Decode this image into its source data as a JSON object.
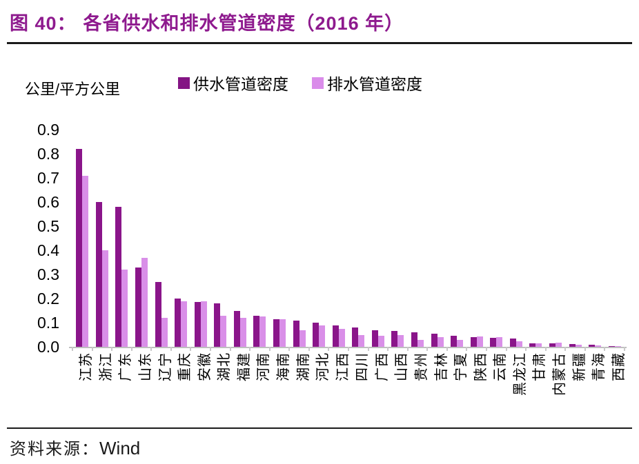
{
  "header": {
    "title_prefix": "图 40：",
    "title_text": "各省供水和排水管道密度（2016 年）",
    "title_color": "#8E1A8E"
  },
  "unit_label": "公里/平方公里",
  "legend": [
    {
      "label": "供水管道密度",
      "color": "#841484"
    },
    {
      "label": "排水管道密度",
      "color": "#DA8CEA"
    }
  ],
  "source": {
    "label_zh": "资料来源：",
    "label_en": "Wind"
  },
  "colors": {
    "title": "#8E1A8E",
    "supply_bar": "#8A158A",
    "drainage_bar": "#D98FE8",
    "axis_line": "#BFBFBF",
    "text": "#000000",
    "rule": "#1A1A1A"
  },
  "chart_data": {
    "type": "bar",
    "title": "各省供水和排水管道密度（2016 年）",
    "xlabel": "",
    "ylabel": "公里/平方公里",
    "ylim": [
      0,
      0.9
    ],
    "yticks": [
      "0.0",
      "0.1",
      "0.2",
      "0.3",
      "0.4",
      "0.5",
      "0.6",
      "0.7",
      "0.8",
      "0.9"
    ],
    "grid": false,
    "legend_position": "top",
    "categories": [
      "江苏",
      "浙江",
      "广东",
      "山东",
      "辽宁",
      "重庆",
      "安徽",
      "湖北",
      "福建",
      "河南",
      "海南",
      "湖南",
      "河北",
      "江西",
      "四川",
      "广西",
      "山西",
      "贵州",
      "吉林",
      "宁夏",
      "陕西",
      "云南",
      "黑龙江",
      "甘肃",
      "内蒙古",
      "新疆",
      "青海",
      "西藏"
    ],
    "series": [
      {
        "name": "供水管道密度",
        "color": "#8A158A",
        "values": [
          0.82,
          0.6,
          0.58,
          0.33,
          0.27,
          0.2,
          0.185,
          0.18,
          0.15,
          0.13,
          0.115,
          0.11,
          0.1,
          0.09,
          0.08,
          0.07,
          0.065,
          0.06,
          0.055,
          0.045,
          0.04,
          0.037,
          0.034,
          0.015,
          0.013,
          0.012,
          0.008,
          0.004
        ]
      },
      {
        "name": "排水管道密度",
        "color": "#D98FE8",
        "values": [
          0.71,
          0.4,
          0.32,
          0.37,
          0.12,
          0.19,
          0.19,
          0.13,
          0.12,
          0.125,
          0.115,
          0.07,
          0.09,
          0.075,
          0.05,
          0.045,
          0.05,
          0.03,
          0.04,
          0.03,
          0.042,
          0.039,
          0.022,
          0.015,
          0.016,
          0.009,
          0.006,
          0.003
        ]
      }
    ]
  }
}
